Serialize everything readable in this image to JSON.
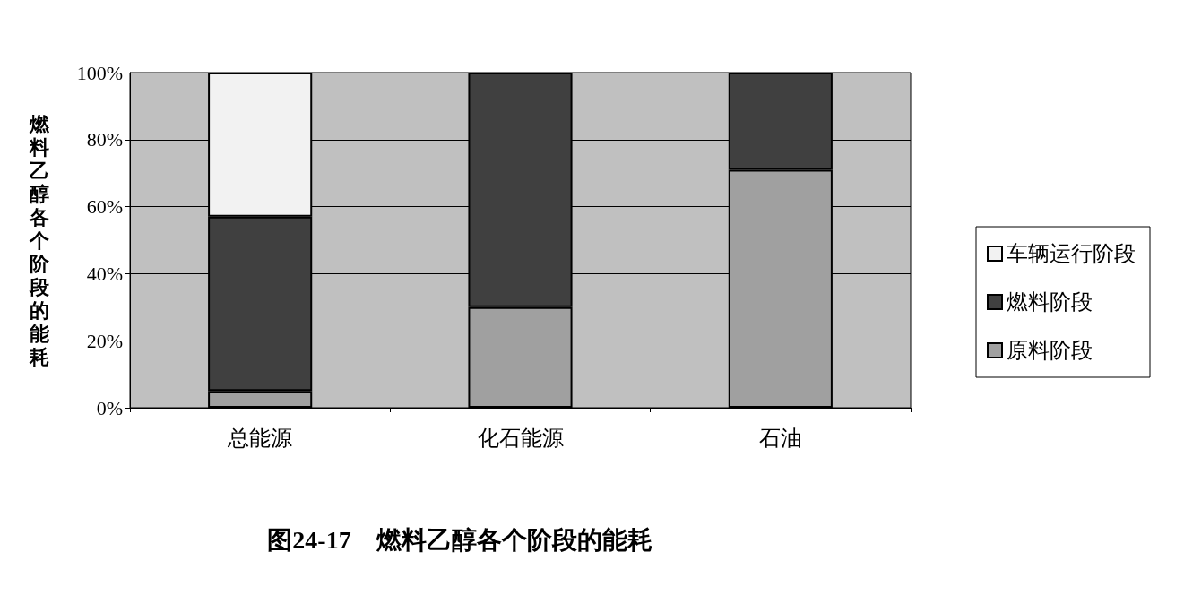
{
  "chart_data": {
    "type": "bar",
    "stacked": true,
    "title": "图24-17　燃料乙醇各个阶段的能耗",
    "ylabel": "燃料乙醇各个阶段的能耗",
    "categories": [
      "总能源",
      "化石能源",
      "石油"
    ],
    "series": [
      {
        "name": "原料阶段",
        "color": "#a0a0a0",
        "values": [
          5,
          30,
          71
        ]
      },
      {
        "name": "燃料阶段",
        "color": "#404040",
        "values": [
          52,
          70,
          29
        ]
      },
      {
        "name": "车辆运行阶段",
        "color": "#f2f2f2",
        "values": [
          43,
          0,
          0
        ]
      }
    ],
    "ylim": [
      0,
      100
    ],
    "yticks": [
      {
        "value": 0,
        "label": "0%"
      },
      {
        "value": 20,
        "label": "20%"
      },
      {
        "value": 40,
        "label": "40%"
      },
      {
        "value": 60,
        "label": "60%"
      },
      {
        "value": 80,
        "label": "80%"
      },
      {
        "value": 100,
        "label": "100%"
      }
    ],
    "grid": "y",
    "legend": "right"
  }
}
